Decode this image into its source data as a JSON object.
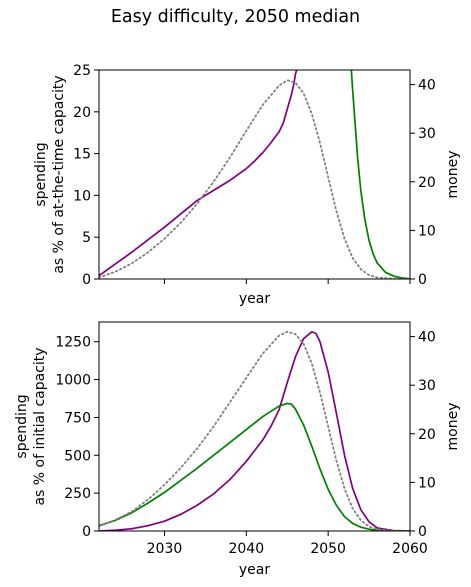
{
  "figure": {
    "title": "Easy difficulty, 2050 median"
  },
  "colors": {
    "spending": "#800080",
    "money": "#008000",
    "reference": "#808080",
    "axis": "#000000"
  },
  "chart_data": [
    {
      "type": "line",
      "panel": "top",
      "title": "",
      "xlabel": "year",
      "ylabel": "spending\nas % of at-the-time capacity",
      "y2label": "money",
      "xlim": [
        2022,
        2060
      ],
      "ylim": [
        0,
        25
      ],
      "y2lim": [
        0,
        43
      ],
      "xticks": [
        2030,
        2040,
        2050,
        2060
      ],
      "xticklabels_visible": false,
      "yticks": [
        0,
        5,
        10,
        15,
        20,
        25
      ],
      "y2ticks": [
        0,
        10,
        20,
        30,
        40
      ],
      "grid": false,
      "series": [
        {
          "axis": "left",
          "style": "solid",
          "color": "#800080",
          "x": [
            2022,
            2024,
            2026,
            2028,
            2030,
            2032,
            2034,
            2036,
            2038,
            2040,
            2041,
            2042,
            2043,
            2044,
            2044.5,
            2045,
            2045.2,
            2045.5,
            2045.8,
            2046.0,
            2046.3
          ],
          "y": [
            0.4,
            1.8,
            3.2,
            4.7,
            6.2,
            7.8,
            9.4,
            10.6,
            11.8,
            13.2,
            14.1,
            15.1,
            16.3,
            17.6,
            18.6,
            20.3,
            21.0,
            22.0,
            23.3,
            24.5,
            25.5
          ]
        },
        {
          "axis": "left",
          "style": "solid",
          "color": "#008000",
          "x": [
            2052.8,
            2053.0,
            2053.3,
            2053.6,
            2054.0,
            2054.5,
            2055.0,
            2055.5,
            2056.0,
            2057.0,
            2058.0,
            2059.0,
            2060.0
          ],
          "y": [
            25.5,
            22.5,
            18.5,
            14.5,
            10.5,
            7.0,
            4.6,
            3.0,
            1.9,
            0.8,
            0.35,
            0.12,
            0.04
          ]
        },
        {
          "axis": "right",
          "style": "dotted",
          "color": "#808080",
          "x": [
            2022,
            2024,
            2026,
            2028,
            2030,
            2032,
            2034,
            2036,
            2038,
            2040,
            2042,
            2044,
            2045,
            2046,
            2047,
            2048,
            2049,
            2050,
            2051,
            2052,
            2053,
            2054,
            2055,
            2056,
            2058,
            2060
          ],
          "y": [
            0.3,
            1.5,
            3.2,
            5.5,
            8.3,
            11.6,
            15.5,
            20.0,
            25.0,
            30.5,
            35.8,
            39.8,
            40.9,
            40.4,
            38.2,
            34.0,
            28.0,
            21.0,
            14.0,
            8.3,
            4.3,
            2.0,
            0.8,
            0.3,
            0.05,
            0.0
          ]
        }
      ]
    },
    {
      "type": "line",
      "panel": "bottom",
      "title": "",
      "xlabel": "year",
      "ylabel": "spending\nas % of initial capacity",
      "y2label": "money",
      "xlim": [
        2022,
        2060
      ],
      "ylim": [
        0,
        1380
      ],
      "y2lim": [
        0,
        43
      ],
      "xticks": [
        2030,
        2040,
        2050,
        2060
      ],
      "xticklabels_visible": true,
      "yticks": [
        0,
        250,
        500,
        750,
        1000,
        1250
      ],
      "y2ticks": [
        0,
        10,
        20,
        30,
        40
      ],
      "grid": false,
      "series": [
        {
          "axis": "left",
          "style": "solid",
          "color": "#800080",
          "x": [
            2022,
            2024,
            2026,
            2028,
            2030,
            2032,
            2034,
            2036,
            2038,
            2040,
            2042,
            2043,
            2044,
            2045,
            2046,
            2047,
            2048,
            2048.5,
            2049,
            2050,
            2051,
            2052,
            2053,
            2054,
            2055,
            2056,
            2058,
            2060
          ],
          "y": [
            0,
            5,
            15,
            35,
            65,
            110,
            170,
            245,
            340,
            460,
            600,
            690,
            800,
            980,
            1150,
            1270,
            1315,
            1305,
            1250,
            1050,
            780,
            500,
            280,
            140,
            60,
            20,
            3,
            0
          ]
        },
        {
          "axis": "left",
          "style": "solid",
          "color": "#008000",
          "x": [
            2022,
            2024,
            2026,
            2028,
            2030,
            2032,
            2034,
            2036,
            2038,
            2040,
            2042,
            2044,
            2045,
            2045.5,
            2046,
            2047,
            2048,
            2049,
            2050,
            2051,
            2052,
            2053,
            2054,
            2055,
            2056,
            2058,
            2060
          ],
          "y": [
            35,
            70,
            120,
            185,
            255,
            335,
            415,
            500,
            585,
            670,
            755,
            825,
            842,
            838,
            805,
            700,
            560,
            410,
            275,
            170,
            95,
            50,
            25,
            12,
            5,
            1,
            0
          ]
        },
        {
          "axis": "right",
          "style": "dotted",
          "color": "#808080",
          "x": [
            2022,
            2024,
            2026,
            2028,
            2030,
            2032,
            2034,
            2036,
            2038,
            2040,
            2042,
            2044,
            2045,
            2046,
            2047,
            2048,
            2049,
            2050,
            2051,
            2052,
            2053,
            2054,
            2055,
            2056,
            2058,
            2060
          ],
          "y": [
            1.0,
            2.3,
            4.0,
            6.5,
            9.5,
            13.0,
            17.0,
            21.5,
            26.5,
            31.5,
            36.5,
            40.2,
            41.0,
            40.5,
            38.5,
            34.5,
            28.5,
            21.5,
            14.5,
            8.7,
            4.6,
            2.2,
            0.9,
            0.35,
            0.05,
            0.0
          ]
        }
      ]
    }
  ]
}
